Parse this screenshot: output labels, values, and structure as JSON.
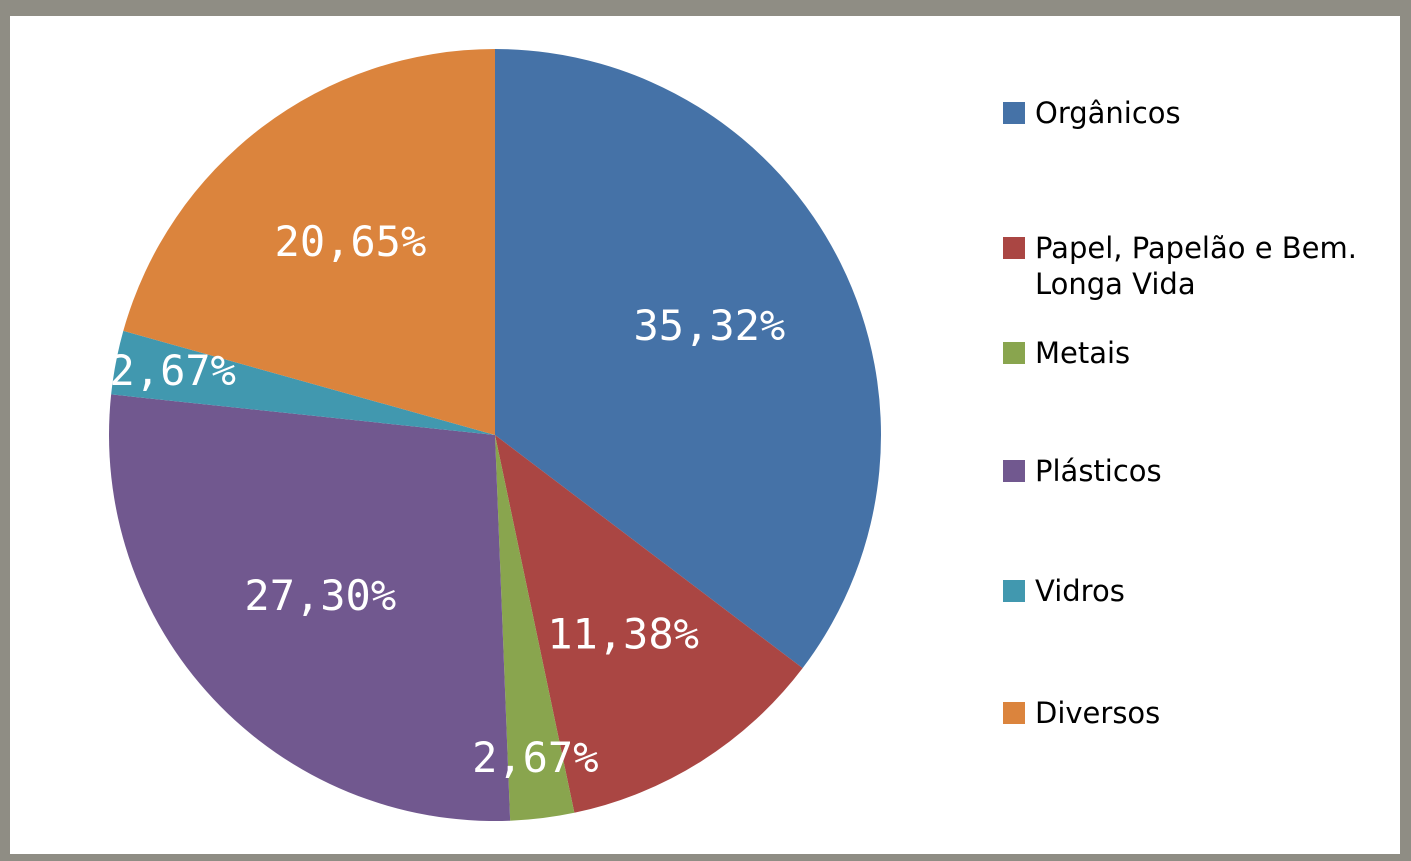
{
  "chart_data": {
    "type": "pie",
    "categories": [
      "Orgânicos",
      "Papel, Papelão e Bem. Longa Vida",
      "Metais",
      "Plásticos",
      "Vidros",
      "Diversos"
    ],
    "values": [
      35.32,
      11.38,
      2.67,
      27.3,
      2.67,
      20.65
    ],
    "value_labels": [
      "35,32%",
      "11,38%",
      "2,67%",
      "27,30%",
      "2,67%",
      "20,65%"
    ],
    "colors": [
      "#4572a7",
      "#aa4643",
      "#89a54e",
      "#71588f",
      "#4198af",
      "#db843d"
    ],
    "legend": "right"
  }
}
